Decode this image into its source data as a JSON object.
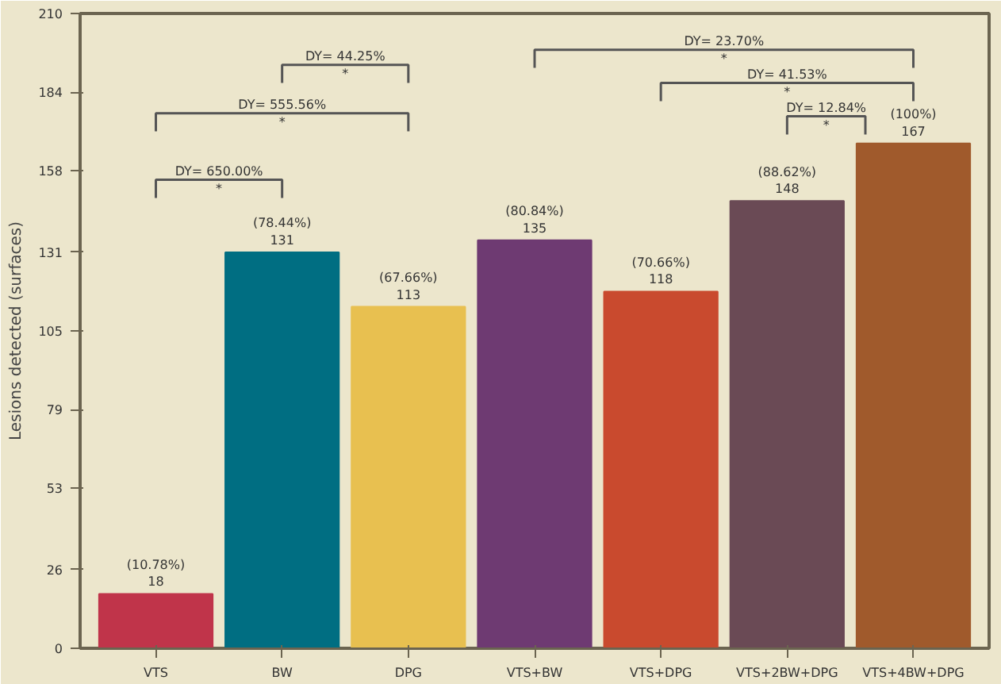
{
  "chart_data": {
    "type": "bar",
    "ylabel": "Lesions detected (surfaces)",
    "categories": [
      "VTS",
      "BW",
      "DPG",
      "VTS+BW",
      "VTS+DPG",
      "VTS+2BW+DPG",
      "VTS+4BW+DPG"
    ],
    "values": [
      18,
      131,
      113,
      135,
      118,
      148,
      167
    ],
    "colors": [
      "#c0344a",
      "#006e82",
      "#e8c050",
      "#6e3a72",
      "#c94a2e",
      "#6a4a55",
      "#a05a2c"
    ],
    "value_labels": [
      "(10.78%)\n18",
      "(78.44%)\n131",
      "(67.66%)\n113",
      "(80.84%)\n135",
      "(70.66%)\n118",
      "(88.62%)\n148",
      "(100%)\n167"
    ],
    "ylim": [
      0,
      210
    ],
    "yticks": [
      0,
      26,
      53,
      79,
      105,
      131,
      158,
      184,
      210
    ],
    "grid": false,
    "annotations": [
      "DY= 650.00%",
      "DY= 555.56%",
      "DY= 44.25%",
      "DY= 23.70%",
      "DY= 41.53%",
      "DY= 12.84%",
      "*",
      "*",
      "*",
      "*",
      "*",
      "*"
    ]
  }
}
